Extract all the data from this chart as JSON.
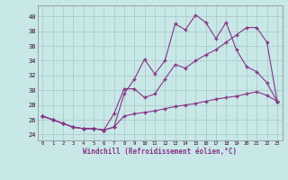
{
  "xlabel": "Windchill (Refroidissement éolien,°C)",
  "bg_color": "#c8e8e8",
  "grid_color": "#a8c8c8",
  "line_color": "#883388",
  "x_ticks": [
    0,
    1,
    2,
    3,
    4,
    5,
    6,
    7,
    8,
    9,
    10,
    11,
    12,
    13,
    14,
    15,
    16,
    17,
    18,
    19,
    20,
    21,
    22,
    23
  ],
  "y_ticks": [
    24,
    26,
    28,
    30,
    32,
    34,
    36,
    38,
    40
  ],
  "ylim": [
    23.2,
    41.5
  ],
  "xlim": [
    -0.5,
    23.5
  ],
  "series1": [
    26.5,
    26.0,
    25.5,
    25.0,
    24.8,
    24.8,
    24.6,
    25.0,
    29.5,
    31.5,
    34.2,
    32.2,
    34.0,
    39.0,
    38.2,
    40.2,
    39.2,
    37.0,
    39.2,
    35.5,
    33.2,
    32.5,
    31.0,
    28.5
  ],
  "series2": [
    26.5,
    26.0,
    25.5,
    25.0,
    24.8,
    24.8,
    24.6,
    26.8,
    30.2,
    30.2,
    29.0,
    29.5,
    31.5,
    33.5,
    33.0,
    34.0,
    34.8,
    35.5,
    36.5,
    37.5,
    38.5,
    38.5,
    36.5,
    28.5
  ],
  "series3": [
    26.5,
    26.0,
    25.5,
    25.0,
    24.8,
    24.8,
    24.6,
    25.0,
    26.5,
    26.8,
    27.0,
    27.2,
    27.5,
    27.8,
    28.0,
    28.2,
    28.5,
    28.8,
    29.0,
    29.2,
    29.5,
    29.8,
    29.3,
    28.5
  ]
}
